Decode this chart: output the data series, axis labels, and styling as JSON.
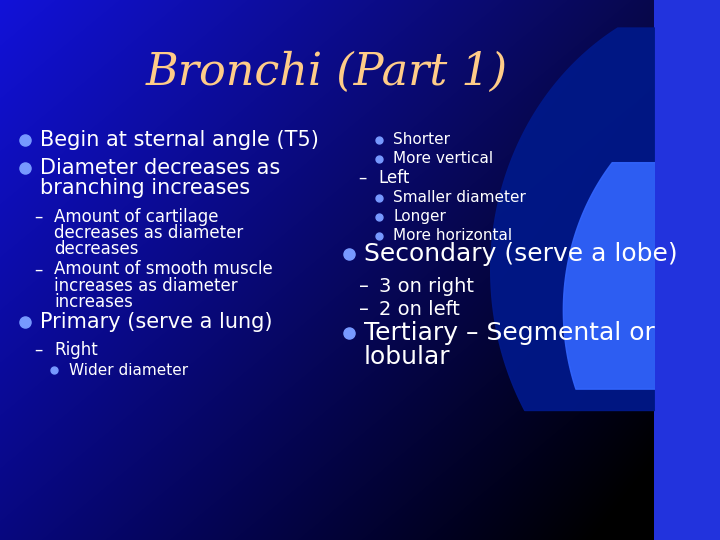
{
  "title": "Bronchi (Part 1)",
  "title_color": "#FFCC88",
  "title_fontsize": 32,
  "bg_color_left": "#2233DD",
  "bg_color_right": "#0011AA",
  "text_color": "#FFFFFF",
  "bullet_color": "#7799FF",
  "left_bullets": [
    {
      "level": 0,
      "text": "Begin at sternal angle (T5)",
      "fs": 15
    },
    {
      "level": 0,
      "text": "Diameter decreases as\nbranching increases",
      "fs": 15
    },
    {
      "level": 1,
      "text": "Amount of cartilage\ndecreases as diameter\ndecreases",
      "fs": 12
    },
    {
      "level": 1,
      "text": "Amount of smooth muscle\nincreases as diameter\nincreases",
      "fs": 12
    },
    {
      "level": 0,
      "text": "Primary (serve a lung)",
      "fs": 15
    },
    {
      "level": 1,
      "text": "Right",
      "fs": 12
    },
    {
      "level": 2,
      "text": "Wider diameter",
      "fs": 11
    }
  ],
  "right_bullets": [
    {
      "level": 2,
      "text": "Shorter",
      "fs": 11
    },
    {
      "level": 2,
      "text": "More vertical",
      "fs": 11
    },
    {
      "level": 1,
      "text": "Left",
      "fs": 12
    },
    {
      "level": 2,
      "text": "Smaller diameter",
      "fs": 11
    },
    {
      "level": 2,
      "text": "Longer",
      "fs": 11
    },
    {
      "level": 2,
      "text": "More horizontal",
      "fs": 11
    },
    {
      "level": 0,
      "text": "Secondary (serve a lobe)",
      "fs": 18
    },
    {
      "level": 1,
      "text": "3 on right",
      "fs": 14
    },
    {
      "level": 1,
      "text": "2 on left",
      "fs": 14
    },
    {
      "level": 0,
      "text": "Tertiary – Segmental or\nlobular",
      "fs": 18
    }
  ],
  "arc1_color": "#5577FF",
  "arc2_color": "#3366EE",
  "arc3_color": "#4488FF"
}
